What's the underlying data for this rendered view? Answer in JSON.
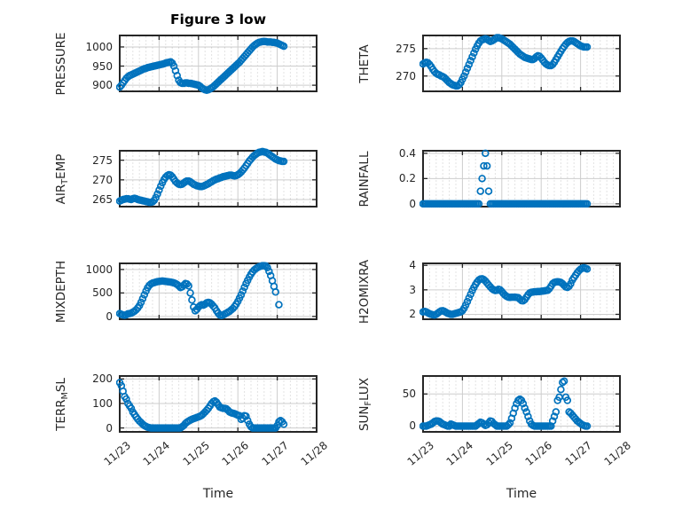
{
  "figure": {
    "title": "Figure 3 low",
    "xlabel": "Time",
    "background": "#ffffff"
  },
  "colors": {
    "marker": "#0072BD",
    "axis": "#262626",
    "grid_major": "#cdcdcd",
    "grid_minor": "#c6c6c6",
    "text": "#262626",
    "title": "#000000"
  },
  "x_axis": {
    "tick_labels": [
      "11/23",
      "11/24",
      "11/25",
      "11/26",
      "11/27",
      "11/28"
    ],
    "tick_days": [
      0,
      1,
      2,
      3,
      4,
      5
    ],
    "range_days": [
      0,
      5
    ],
    "minor_divisions_per_day": 6,
    "tick_angle_deg": 40
  },
  "chart_data": [
    {
      "type": "scatter",
      "name": "PRESSURE",
      "ylabel": [
        {
          "t": "PRESSURE"
        }
      ],
      "ylim": [
        884,
        1030
      ],
      "yticks": [
        900,
        950,
        1000
      ],
      "ytick_labels": [
        "900",
        "950",
        "1000"
      ],
      "start_day": 0,
      "step_hours": 1,
      "values": [
        895,
        900,
        906,
        912,
        918,
        922,
        925,
        927,
        929,
        931,
        933,
        935,
        937,
        939,
        941,
        943,
        944,
        946,
        947,
        948,
        949,
        950,
        951,
        952,
        953,
        954,
        955,
        956,
        958,
        959,
        960,
        961,
        958,
        950,
        938,
        925,
        913,
        907,
        905,
        905,
        906,
        906,
        905,
        905,
        904,
        903,
        902,
        901,
        900,
        897,
        893,
        890,
        888,
        887,
        888,
        890,
        893,
        896,
        900,
        904,
        908,
        912,
        916,
        920,
        924,
        928,
        932,
        936,
        940,
        944,
        948,
        952,
        956,
        960,
        965,
        970,
        975,
        980,
        985,
        990,
        995,
        1000,
        1004,
        1007,
        1010,
        1012,
        1013,
        1014,
        1014,
        1014,
        1013,
        1013,
        1013,
        1012,
        1012,
        1011,
        1010,
        1008,
        1006,
        1004,
        1002
      ]
    },
    {
      "type": "scatter",
      "name": "THETA",
      "ylabel": [
        {
          "t": "THETA"
        }
      ],
      "ylim": [
        267.2,
        277.4
      ],
      "yticks": [
        270,
        275
      ],
      "ytick_labels": [
        "270",
        "275"
      ],
      "start_day": 0,
      "step_hours": 1,
      "values": [
        272.2,
        272.4,
        272.5,
        272.4,
        272.1,
        271.7,
        271.2,
        270.8,
        270.5,
        270.3,
        270.2,
        270.0,
        269.9,
        269.7,
        269.4,
        269.1,
        268.8,
        268.6,
        268.4,
        268.3,
        268.2,
        268.2,
        268.4,
        268.8,
        269.4,
        270.0,
        270.7,
        271.4,
        272.1,
        272.8,
        273.5,
        274.2,
        274.9,
        275.5,
        276.0,
        276.4,
        276.6,
        276.7,
        276.8,
        276.7,
        276.5,
        276.3,
        276.4,
        276.6,
        276.8,
        277.0,
        277.0,
        276.9,
        276.8,
        276.6,
        276.4,
        276.2,
        276.0,
        275.8,
        275.5,
        275.2,
        274.9,
        274.6,
        274.3,
        274.0,
        273.8,
        273.6,
        273.4,
        273.3,
        273.2,
        273.1,
        273.0,
        273.0,
        273.2,
        273.5,
        273.7,
        273.6,
        273.3,
        272.9,
        272.5,
        272.2,
        272.0,
        271.9,
        271.9,
        272.1,
        272.5,
        273.0,
        273.5,
        274.0,
        274.5,
        275.0,
        275.4,
        275.8,
        276.1,
        276.3,
        276.4,
        276.4,
        276.3,
        276.1,
        275.9,
        275.7,
        275.5,
        275.4,
        275.3,
        275.3,
        275.3
      ]
    },
    {
      "type": "scatter",
      "name": "AIR_TEMP",
      "ylabel": [
        {
          "t": "AIR"
        },
        {
          "t": "T",
          "sub": true
        },
        {
          "t": "EMP"
        }
      ],
      "ylim": [
        263.2,
        277.4
      ],
      "yticks": [
        265,
        270,
        275
      ],
      "ytick_labels": [
        "265",
        "270",
        "275"
      ],
      "start_day": 0,
      "step_hours": 1,
      "values": [
        264.6,
        264.8,
        265.0,
        265.1,
        265.2,
        265.2,
        265.1,
        265.0,
        265.2,
        265.3,
        265.2,
        265.0,
        264.9,
        264.8,
        264.7,
        264.6,
        264.5,
        264.4,
        264.3,
        264.3,
        264.4,
        264.8,
        265.5,
        266.4,
        267.4,
        268.4,
        269.3,
        270.1,
        270.7,
        271.1,
        271.3,
        271.2,
        270.8,
        270.2,
        269.6,
        269.2,
        268.9,
        268.8,
        268.9,
        269.2,
        269.5,
        269.7,
        269.7,
        269.5,
        269.2,
        268.9,
        268.7,
        268.5,
        268.4,
        268.3,
        268.3,
        268.4,
        268.6,
        268.8,
        269.0,
        269.3,
        269.5,
        269.8,
        270.0,
        270.2,
        270.3,
        270.5,
        270.6,
        270.8,
        270.9,
        271.0,
        271.1,
        271.2,
        271.2,
        271.1,
        271.0,
        271.1,
        271.3,
        271.6,
        272.0,
        272.5,
        273.0,
        273.6,
        274.2,
        274.8,
        275.3,
        275.8,
        276.2,
        276.5,
        276.8,
        277.0,
        277.1,
        277.2,
        277.1,
        277.0,
        276.8,
        276.5,
        276.2,
        275.9,
        275.6,
        275.3,
        275.1,
        274.9,
        274.8,
        274.7,
        274.7
      ]
    },
    {
      "type": "scatter",
      "name": "RAINFALL",
      "ylabel": [
        {
          "t": "RAINFALL"
        }
      ],
      "ylim": [
        -0.022,
        0.42
      ],
      "yticks": [
        0,
        0.2,
        0.4
      ],
      "ytick_labels": [
        "0",
        "0.2",
        "0.4"
      ],
      "start_day": 0,
      "step_hours": 1,
      "values": [
        0,
        0,
        0,
        0,
        0,
        0,
        0,
        0,
        0,
        0,
        0,
        0,
        0,
        0,
        0,
        0,
        0,
        0,
        0,
        0,
        0,
        0,
        0,
        0,
        0,
        0,
        0,
        0,
        0,
        0,
        0,
        0,
        0,
        0,
        0,
        0.1,
        0.2,
        0.3,
        0.4,
        0.3,
        0.1,
        0,
        0,
        0,
        0,
        0,
        0,
        0,
        0,
        0,
        0,
        0,
        0,
        0,
        0,
        0,
        0,
        0,
        0,
        0,
        0,
        0,
        0,
        0,
        0,
        0,
        0,
        0,
        0,
        0,
        0,
        0,
        0,
        0,
        0,
        0,
        0,
        0,
        0,
        0,
        0,
        0,
        0,
        0,
        0,
        0,
        0,
        0,
        0,
        0,
        0,
        0,
        0,
        0,
        0,
        0,
        0,
        0,
        0,
        0,
        0
      ]
    },
    {
      "type": "scatter",
      "name": "MIXDEPTH",
      "ylabel": [
        {
          "t": "MIXDEPTH"
        }
      ],
      "ylim": [
        -60,
        1130
      ],
      "yticks": [
        0,
        500,
        1000
      ],
      "ytick_labels": [
        "0",
        "500",
        "1000"
      ],
      "start_day": 0,
      "step_hours": 1,
      "values": [
        60,
        45,
        30,
        25,
        35,
        55,
        60,
        70,
        90,
        110,
        140,
        180,
        230,
        300,
        380,
        460,
        540,
        610,
        660,
        690,
        710,
        720,
        730,
        740,
        745,
        750,
        755,
        750,
        745,
        740,
        735,
        730,
        725,
        715,
        700,
        680,
        650,
        615,
        630,
        665,
        700,
        690,
        650,
        500,
        350,
        200,
        120,
        150,
        200,
        230,
        250,
        240,
        260,
        290,
        300,
        290,
        260,
        220,
        180,
        120,
        70,
        30,
        20,
        30,
        50,
        70,
        90,
        110,
        140,
        170,
        210,
        260,
        320,
        390,
        460,
        540,
        620,
        700,
        770,
        840,
        900,
        950,
        990,
        1020,
        1040,
        1060,
        1070,
        1080,
        1080,
        1075,
        1040,
        960,
        870,
        760,
        640,
        520,
        null,
        250
      ]
    },
    {
      "type": "scatter",
      "name": "H2OMIXRA",
      "ylabel": [
        {
          "t": "H2OMIXRA"
        }
      ],
      "ylim": [
        1.8,
        4.08
      ],
      "yticks": [
        2,
        3,
        4
      ],
      "ytick_labels": [
        "2",
        "3",
        "4"
      ],
      "start_day": 0,
      "step_hours": 1,
      "values": [
        2.1,
        2.12,
        2.1,
        2.06,
        2.02,
        2.0,
        1.98,
        1.97,
        2.0,
        2.05,
        2.1,
        2.14,
        2.15,
        2.12,
        2.08,
        2.04,
        2.02,
        2.0,
        2.0,
        2.02,
        2.04,
        2.06,
        2.08,
        2.1,
        2.15,
        2.25,
        2.38,
        2.52,
        2.67,
        2.82,
        2.97,
        3.1,
        3.22,
        3.32,
        3.4,
        3.44,
        3.45,
        3.42,
        3.36,
        3.28,
        3.2,
        3.12,
        3.05,
        3.0,
        2.97,
        2.98,
        3.02,
        3.0,
        2.93,
        2.85,
        2.78,
        2.73,
        2.7,
        2.69,
        2.7,
        2.7,
        2.7,
        2.69,
        2.68,
        2.62,
        2.56,
        2.55,
        2.6,
        2.7,
        2.8,
        2.87,
        2.9,
        2.91,
        2.92,
        2.92,
        2.93,
        2.93,
        2.94,
        2.95,
        2.96,
        2.97,
        2.98,
        3.05,
        3.15,
        3.25,
        3.3,
        3.32,
        3.33,
        3.32,
        3.3,
        3.25,
        3.18,
        3.12,
        3.1,
        3.15,
        3.25,
        3.4,
        3.5,
        3.6,
        3.7,
        3.78,
        3.84,
        3.88,
        3.9,
        3.88,
        3.85
      ]
    },
    {
      "type": "scatter",
      "name": "TERR_MSL",
      "ylabel": [
        {
          "t": "TERR"
        },
        {
          "t": "M",
          "sub": true
        },
        {
          "t": "SL"
        }
      ],
      "ylim": [
        -16,
        212
      ],
      "yticks": [
        0,
        100,
        200
      ],
      "ytick_labels": [
        "0",
        "100",
        "200"
      ],
      "start_day": 0,
      "step_hours": 1,
      "values": [
        185,
        172,
        150,
        128,
        118,
        100,
        90,
        80,
        65,
        55,
        45,
        36,
        28,
        22,
        15,
        10,
        6,
        3,
        1,
        0,
        0,
        0,
        0,
        0,
        0,
        0,
        0,
        0,
        0,
        0,
        0,
        0,
        0,
        0,
        0,
        0,
        0,
        0,
        5,
        10,
        18,
        24,
        28,
        32,
        35,
        38,
        40,
        43,
        45,
        48,
        52,
        58,
        65,
        72,
        80,
        90,
        100,
        107,
        110,
        105,
        95,
        85,
        82,
        80,
        80,
        78,
        72,
        65,
        62,
        60,
        58,
        55,
        52,
        50,
        35,
        40,
        50,
        48,
        30,
        15,
        5,
        0,
        0,
        0,
        0,
        0,
        0,
        0,
        0,
        0,
        0,
        0,
        0,
        0,
        0,
        0,
        10,
        25,
        30,
        25,
        15
      ]
    },
    {
      "type": "scatter",
      "name": "SUN_FLUX",
      "ylabel": [
        {
          "t": "SUN"
        },
        {
          "t": "F",
          "sub": true
        },
        {
          "t": "LUX"
        }
      ],
      "ylim": [
        -9,
        78
      ],
      "yticks": [
        0,
        50
      ],
      "ytick_labels": [
        "0",
        "50"
      ],
      "start_day": 0,
      "step_hours": 1,
      "values": [
        0,
        0,
        0,
        1,
        2,
        3,
        5,
        7,
        8,
        8,
        7,
        5,
        3,
        2,
        1,
        0,
        0,
        3,
        2,
        1,
        0,
        0,
        0,
        0,
        0,
        0,
        0,
        0,
        0,
        0,
        0,
        0,
        0,
        2,
        4,
        6,
        5,
        3,
        1,
        2,
        5,
        8,
        7,
        4,
        2,
        0,
        0,
        0,
        0,
        0,
        0,
        0,
        2,
        5,
        12,
        20,
        28,
        35,
        40,
        42,
        40,
        35,
        28,
        22,
        15,
        8,
        3,
        1,
        0,
        0,
        0,
        0,
        0,
        0,
        0,
        0,
        0,
        0,
        0,
        8,
        15,
        22,
        40,
        45,
        57,
        68,
        70,
        45,
        40,
        22,
        20,
        17,
        14,
        11,
        8,
        6,
        4,
        2,
        1,
        0,
        0
      ]
    }
  ]
}
